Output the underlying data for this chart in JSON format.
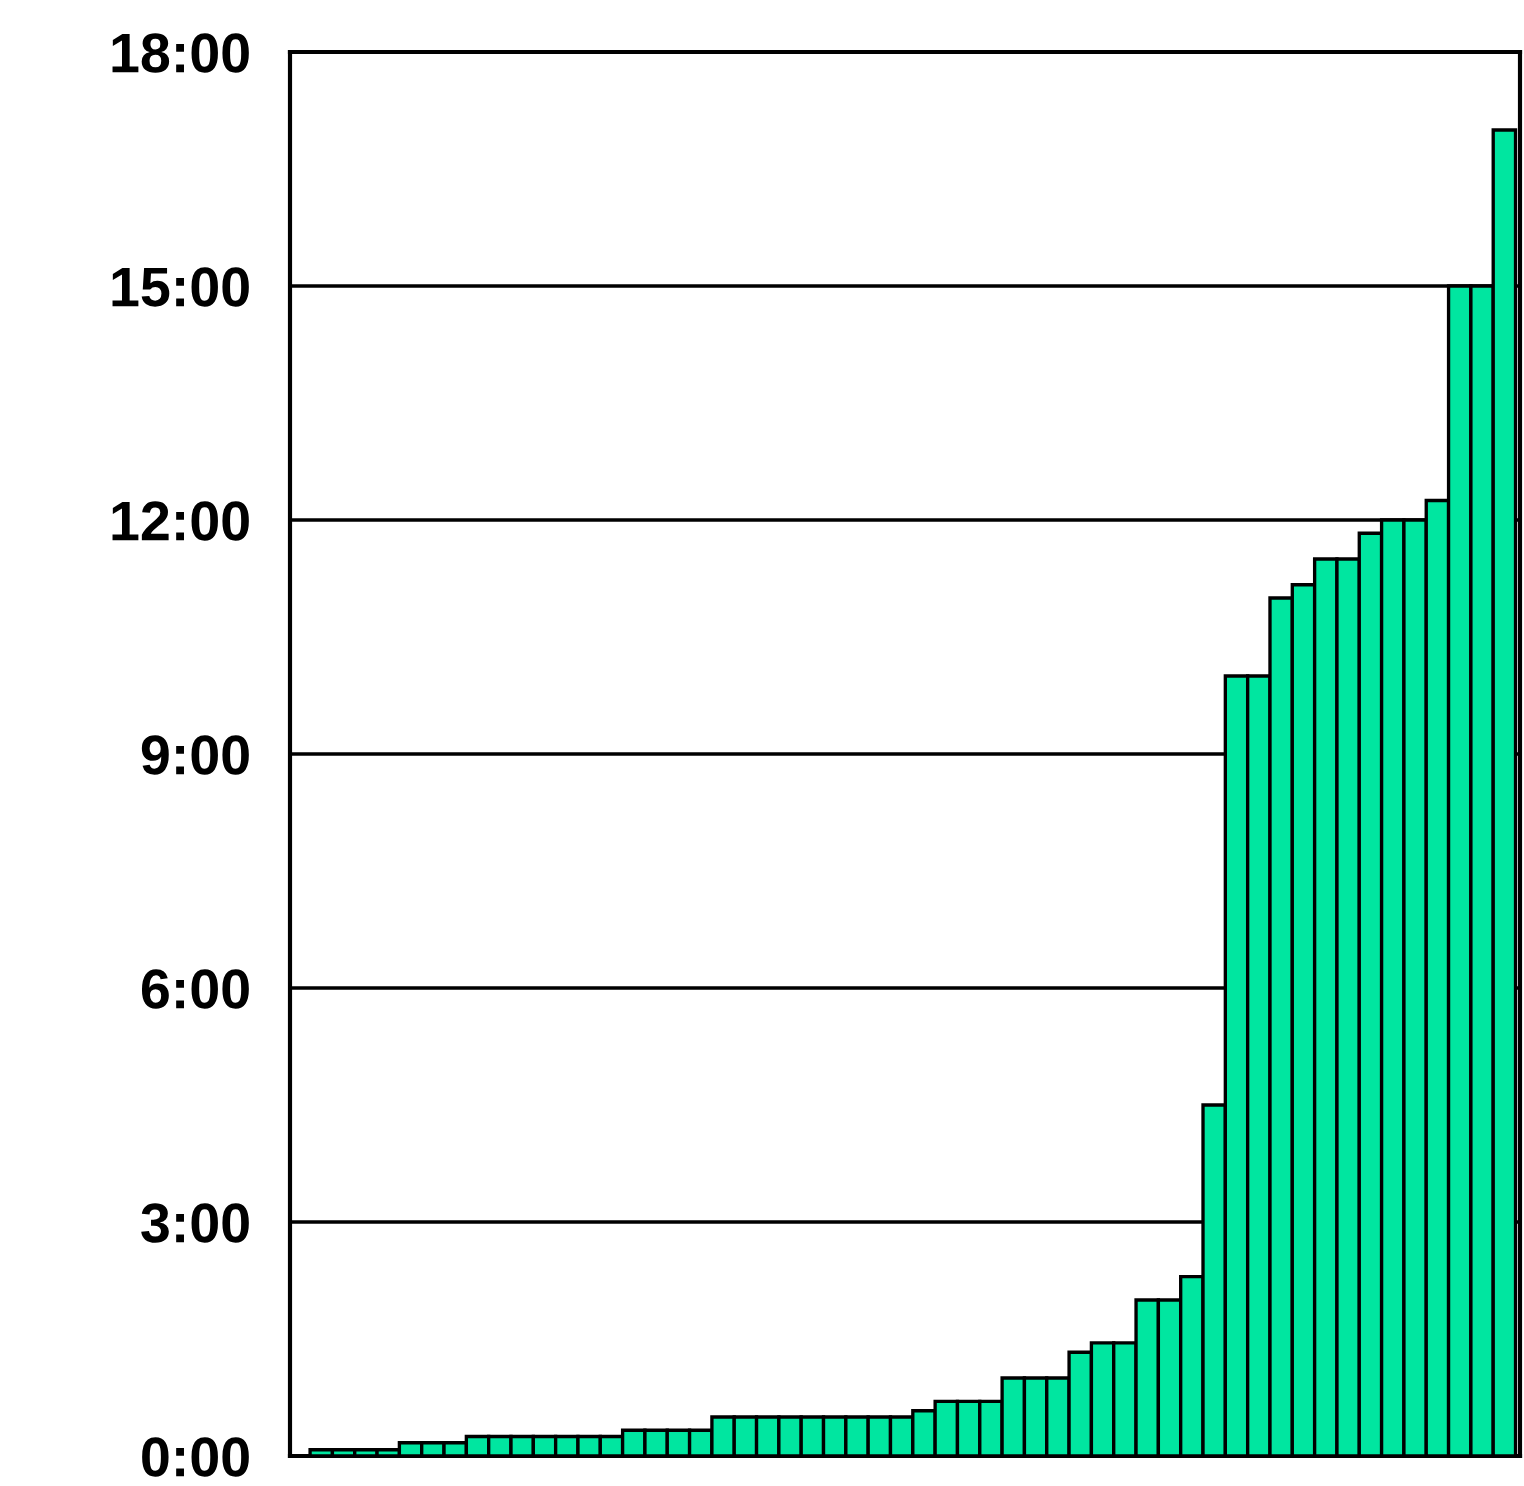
{
  "chart_data": {
    "type": "bar",
    "categories": [
      null,
      null,
      null,
      null,
      null,
      null,
      null,
      null,
      null,
      null,
      null,
      null,
      null,
      null,
      null,
      null,
      null,
      null,
      null,
      null,
      null,
      null,
      null,
      null,
      null,
      null,
      null,
      null,
      null,
      null,
      null,
      null,
      null,
      null,
      null,
      null,
      null,
      null,
      null,
      null,
      null,
      null,
      null,
      null,
      null,
      null,
      null,
      null,
      null,
      null,
      null,
      null,
      null,
      null
    ],
    "values": [
      0.08,
      0.08,
      0.08,
      0.08,
      0.17,
      0.17,
      0.17,
      0.25,
      0.25,
      0.25,
      0.25,
      0.25,
      0.25,
      0.25,
      0.33,
      0.33,
      0.33,
      0.33,
      0.5,
      0.5,
      0.5,
      0.5,
      0.5,
      0.5,
      0.5,
      0.5,
      0.5,
      0.58,
      0.7,
      0.7,
      0.7,
      1.0,
      1.0,
      1.0,
      1.33,
      1.45,
      1.45,
      2.0,
      2.0,
      2.3,
      4.5,
      10.0,
      10.0,
      11.0,
      11.17,
      11.5,
      11.5,
      11.83,
      12.0,
      12.0,
      12.25,
      15.0,
      15.0,
      17.0
    ],
    "color": "#00e6a0",
    "ylim": [
      0,
      18
    ],
    "yticks": [
      {
        "value": 0,
        "label": "0:00"
      },
      {
        "value": 3,
        "label": "3:00"
      },
      {
        "value": 6,
        "label": "6:00"
      },
      {
        "value": 9,
        "label": "9:00"
      },
      {
        "value": 12,
        "label": "12:00"
      },
      {
        "value": 15,
        "label": "15:00"
      },
      {
        "value": 18,
        "label": "18:00"
      }
    ],
    "grid": "y"
  }
}
